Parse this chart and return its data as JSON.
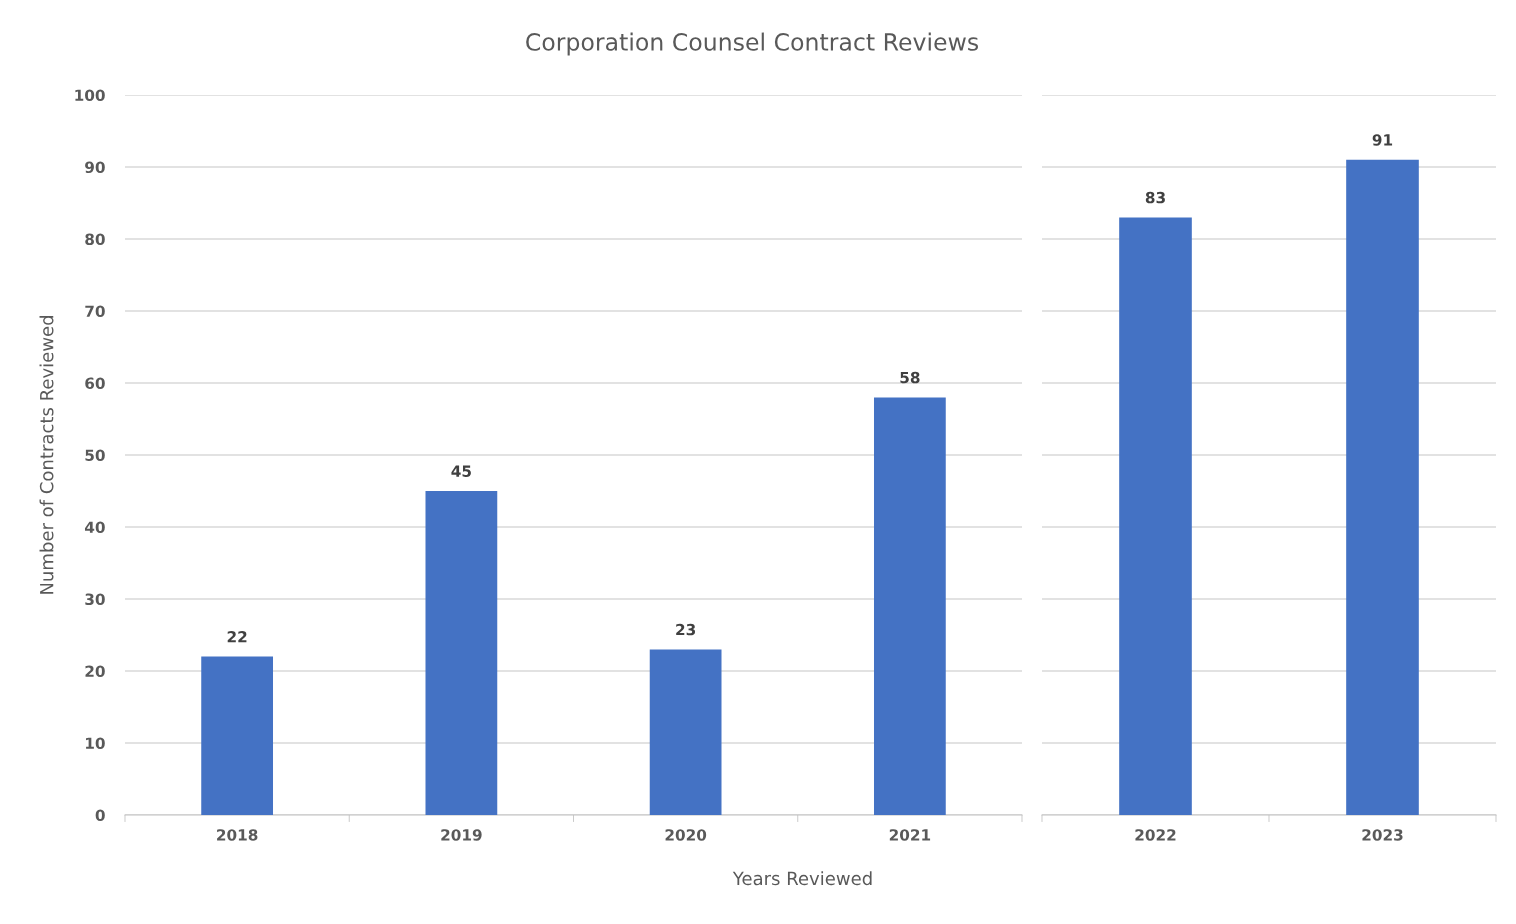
{
  "chart_data": [
    {
      "type": "bar",
      "title": "Corporation Counsel Contract Reviews",
      "xlabel": "Years Reviewed",
      "ylabel": "Number of Contracts Reviewed",
      "categories": [
        "2018",
        "2019",
        "2020",
        "2021"
      ],
      "values": [
        22,
        45,
        23,
        58
      ],
      "color": "#4472c4",
      "ylim": [
        0,
        100
      ],
      "yticks": [
        0,
        10,
        20,
        30,
        40,
        50,
        60,
        70,
        80,
        90,
        100
      ],
      "grid": "y",
      "data_labels": true
    },
    {
      "type": "bar",
      "categories": [
        "2022",
        "2023"
      ],
      "values": [
        83,
        91
      ],
      "color": "#4472c4",
      "ylim": [
        0,
        100
      ],
      "yticks": [
        0,
        10,
        20,
        30,
        40,
        50,
        60,
        70,
        80,
        90,
        100
      ],
      "grid": "y",
      "data_labels": true,
      "tick_labels": "x"
    }
  ]
}
